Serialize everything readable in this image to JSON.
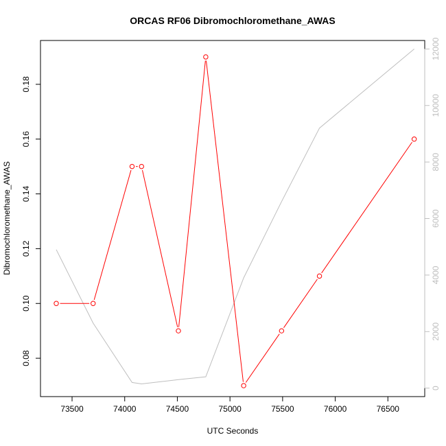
{
  "chart_data": {
    "type": "line",
    "title": "ORCAS RF06 Dibromochloromethane_AWAS",
    "xlabel": "UTC Seconds",
    "ylabel": "Dibromochloromethane_AWAS",
    "xlim": [
      73200,
      76850
    ],
    "ylim": [
      0.066,
      0.196
    ],
    "y2lim": [
      -300,
      12300
    ],
    "xticks": [
      73500,
      74000,
      74500,
      75000,
      75500,
      76000,
      76500
    ],
    "yticks": [
      0.08,
      0.1,
      0.12,
      0.14,
      0.16,
      0.18
    ],
    "y2ticks": [
      0,
      2000,
      4000,
      6000,
      8000,
      10000,
      12000
    ],
    "xtick_labels": [
      "73500",
      "74000",
      "74500",
      "75000",
      "75500",
      "76000",
      "76500"
    ],
    "ytick_labels": [
      "0.08",
      "0.10",
      "0.12",
      "0.14",
      "0.16",
      "0.18"
    ],
    "y2tick_labels": [
      "0",
      "2000",
      "4000",
      "6000",
      "8000",
      "10000",
      "12000"
    ],
    "series": [
      {
        "axis": "left",
        "color": "#ff0000",
        "markers": "open-circle",
        "x": [
          73350,
          73700,
          74070,
          74160,
          74510,
          74770,
          75130,
          75490,
          75850,
          76750
        ],
        "y": [
          0.1,
          0.1,
          0.15,
          0.15,
          0.09,
          0.19,
          0.07,
          0.09,
          0.11,
          0.16
        ]
      },
      {
        "axis": "right",
        "color": "#bebebe",
        "markers": "none",
        "x": [
          73350,
          73700,
          74070,
          74160,
          74510,
          74770,
          75130,
          75490,
          75850,
          76750
        ],
        "y": [
          4900,
          2300,
          200,
          150,
          300,
          400,
          3900,
          6600,
          9200,
          12000
        ]
      }
    ],
    "grid": false,
    "legend": "none"
  }
}
